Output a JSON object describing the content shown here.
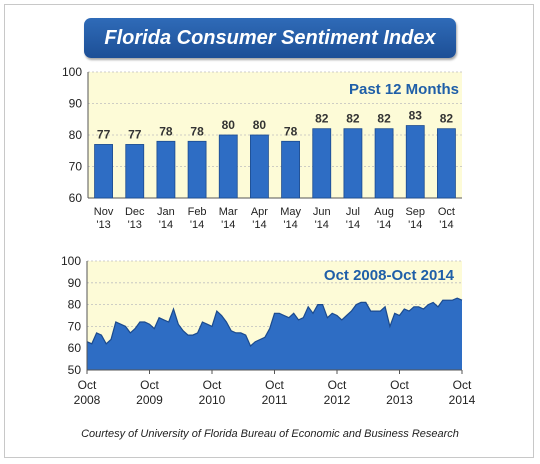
{
  "title": "Florida Consumer Sentiment Index",
  "footer": "Courtesy of University of Florida Bureau of Economic and Business Research",
  "colors": {
    "bar": "#2e6dc4",
    "bar_edge": "#1b4a8e",
    "line": "#2863b4",
    "plot_bg": "#fdfbd7",
    "label_blue": "#1f5fa8",
    "grid": "#bfbfbf"
  },
  "chart_data": [
    {
      "type": "bar",
      "title": "Past 12 Months",
      "categories": [
        "Nov '13",
        "Dec '13",
        "Jan '14",
        "Feb '14",
        "Mar '14",
        "Apr '14",
        "May '14",
        "Jun '14",
        "Jul '14",
        "Aug '14",
        "Sep '14",
        "Oct '14"
      ],
      "category_lines": [
        [
          "Nov",
          "'13"
        ],
        [
          "Dec",
          "'13"
        ],
        [
          "Jan",
          "'14"
        ],
        [
          "Feb",
          "'14"
        ],
        [
          "Mar",
          "'14"
        ],
        [
          "Apr",
          "'14"
        ],
        [
          "May",
          "'14"
        ],
        [
          "Jun",
          "'14"
        ],
        [
          "Jul",
          "'14"
        ],
        [
          "Aug",
          "'14"
        ],
        [
          "Sep",
          "'14"
        ],
        [
          "Oct",
          "'14"
        ]
      ],
      "values": [
        77,
        77,
        78,
        78,
        80,
        80,
        78,
        82,
        82,
        82,
        83,
        82
      ],
      "data_labels": [
        "77",
        "77",
        "78",
        "78",
        "80",
        "80",
        "78",
        "82",
        "82",
        "82",
        "83",
        "82"
      ],
      "ylim": [
        60,
        100
      ],
      "yticks": [
        60,
        70,
        80,
        90,
        100
      ],
      "grid": true
    },
    {
      "type": "area",
      "title": "Oct 2008-Oct 2014",
      "x_start": "2008-10",
      "x_end": "2014-10",
      "x_tick_lines": [
        [
          "Oct",
          "2008"
        ],
        [
          "Oct",
          "2009"
        ],
        [
          "Oct",
          "2010"
        ],
        [
          "Oct",
          "2011"
        ],
        [
          "Oct",
          "2012"
        ],
        [
          "Oct",
          "2013"
        ],
        [
          "Oct",
          "2014"
        ]
      ],
      "values": [
        63,
        62,
        67,
        66,
        62,
        64,
        72,
        71,
        70,
        67,
        69,
        72,
        72,
        71,
        69,
        74,
        73,
        72,
        78,
        71,
        68,
        66,
        66,
        67,
        72,
        71,
        70,
        77,
        75,
        72,
        68,
        67,
        67,
        66,
        61,
        63,
        64,
        65,
        69,
        76,
        76,
        75,
        74,
        76,
        73,
        74,
        79,
        76,
        80,
        80,
        74,
        76,
        75,
        73,
        75,
        77,
        80,
        81,
        81,
        77,
        77,
        77,
        79,
        70,
        76,
        75,
        78,
        77,
        79,
        79,
        78,
        80,
        81,
        79,
        82,
        82,
        82,
        83,
        82
      ],
      "ylim": [
        50,
        100
      ],
      "yticks": [
        50,
        60,
        70,
        80,
        90,
        100
      ],
      "grid": true
    }
  ]
}
